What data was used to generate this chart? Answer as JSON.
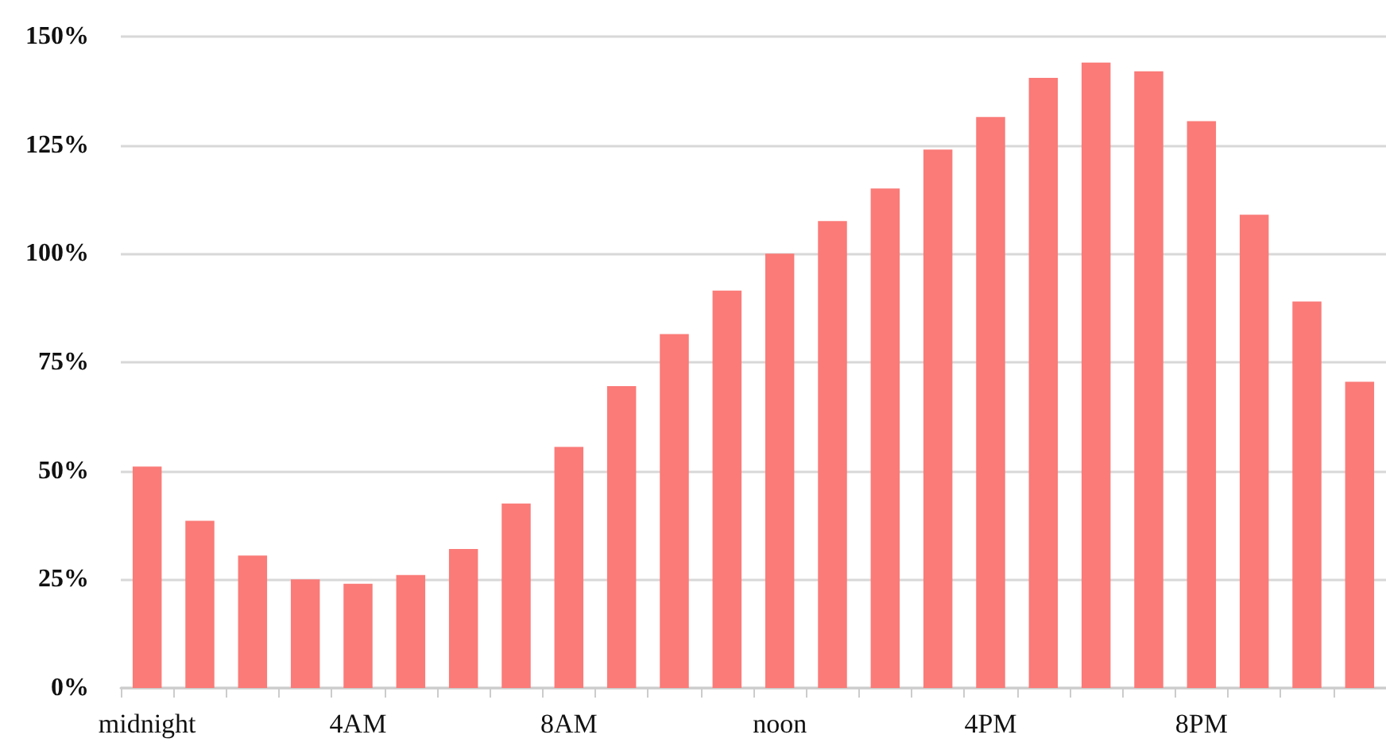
{
  "chart_data": {
    "type": "bar",
    "categories": [
      "midnight",
      null,
      null,
      null,
      "4AM",
      null,
      null,
      null,
      "8AM",
      null,
      null,
      null,
      "noon",
      null,
      null,
      null,
      "4PM",
      null,
      null,
      null,
      "8PM",
      null,
      null,
      null
    ],
    "values": [
      51,
      38.5,
      30.5,
      25,
      24,
      26,
      32,
      42.5,
      55.5,
      69.5,
      81.5,
      91.5,
      100,
      107.5,
      115,
      124,
      131.5,
      140.5,
      144,
      142,
      130.5,
      109,
      89,
      70.5
    ],
    "color": "#fa7b78",
    "ylim": [
      0,
      150
    ],
    "yticks": [
      {
        "value": 0,
        "label": "0%"
      },
      {
        "value": 25,
        "label": "25%"
      },
      {
        "value": 50,
        "label": "50%"
      },
      {
        "value": 75,
        "label": "75%"
      },
      {
        "value": 100,
        "label": "100%"
      },
      {
        "value": 125,
        "label": "125%"
      },
      {
        "value": 150,
        "label": "150%"
      }
    ],
    "grid": "y"
  }
}
